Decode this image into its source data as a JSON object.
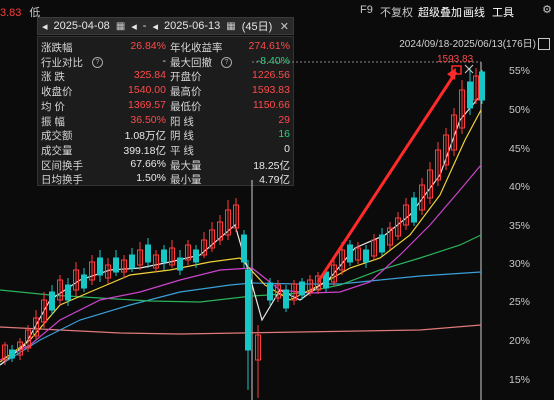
{
  "topbar": {
    "left_value": "3.83",
    "left_label": "低",
    "items": [
      {
        "label": "F9",
        "highlight": false
      },
      {
        "label": "不复权",
        "highlight": false
      },
      {
        "label": "超级叠加",
        "highlight": true
      },
      {
        "label": "画线",
        "highlight": true
      },
      {
        "label": "工具",
        "highlight": true
      }
    ],
    "more_icon": "settings-icon"
  },
  "range": {
    "text": "2024/09/18-2025/06/13(176日)"
  },
  "datebar": {
    "start": "2025-04-08",
    "end": "2025-06-13",
    "days": "(45日)",
    "prev_arrow": "◂",
    "next_arrow": "▸",
    "separator": "-",
    "calendar_icon": "calendar-icon",
    "close_icon": "close-icon"
  },
  "stats": [
    {
      "l1": "涨跌幅",
      "v1": "26.84%",
      "c1": "red",
      "l2": "年化收益率",
      "v2": "274.61%",
      "c2": "red"
    },
    {
      "l1": "行业对比",
      "q": true,
      "v1": "-",
      "c1": "white",
      "l2": "最大回撤",
      "q2": true,
      "v2": "-8.40%",
      "c2": "green"
    },
    {
      "l1": "涨  跌",
      "v1": "325.84",
      "c1": "red",
      "l2": "开盘价",
      "v2": "1226.56",
      "c2": "red"
    },
    {
      "l1": "收盘价",
      "v1": "1540.00",
      "c1": "red",
      "l2": "最高价",
      "v2": "1593.83",
      "c2": "red"
    },
    {
      "l1": "均  价",
      "v1": "1369.57",
      "c1": "red",
      "l2": "最低价",
      "v2": "1150.66",
      "c2": "red"
    },
    {
      "l1": "振  幅",
      "v1": "36.50%",
      "c1": "red",
      "l2": "阳  线",
      "v2": "29",
      "c2": "red"
    },
    {
      "l1": "成交额",
      "v1": "1.08万亿",
      "c1": "white",
      "l2": "阴  线",
      "v2": "16",
      "c2": "green"
    },
    {
      "l1": "成交量",
      "v1": "399.18亿",
      "c1": "white",
      "l2": "平  线",
      "v2": "0",
      "c2": "white"
    },
    {
      "l1": "区间换手",
      "v1": "67.66%",
      "c1": "white",
      "l2": "最大量",
      "v2": "18.25亿",
      "c2": "white"
    },
    {
      "l1": "日均换手",
      "v1": "1.50%",
      "c1": "white",
      "l2": "最小量",
      "v2": "4.79亿",
      "c2": "white"
    }
  ],
  "axis": {
    "labels": [
      "55%",
      "50%",
      "45%",
      "40%",
      "35%",
      "30%",
      "25%",
      "20%",
      "15%"
    ]
  },
  "chart": {
    "high_marker": "1593.83",
    "colors": {
      "up": "#ff3b3b",
      "down": "#18c6c6",
      "ma5": "#e8e8e8",
      "ma10": "#f2d23b",
      "ma20": "#cc44cc",
      "ma30": "#2bb35a",
      "ma60": "#3aa0d8",
      "ma120": "#e07a7a",
      "trend": "#ff2a2a"
    }
  }
}
